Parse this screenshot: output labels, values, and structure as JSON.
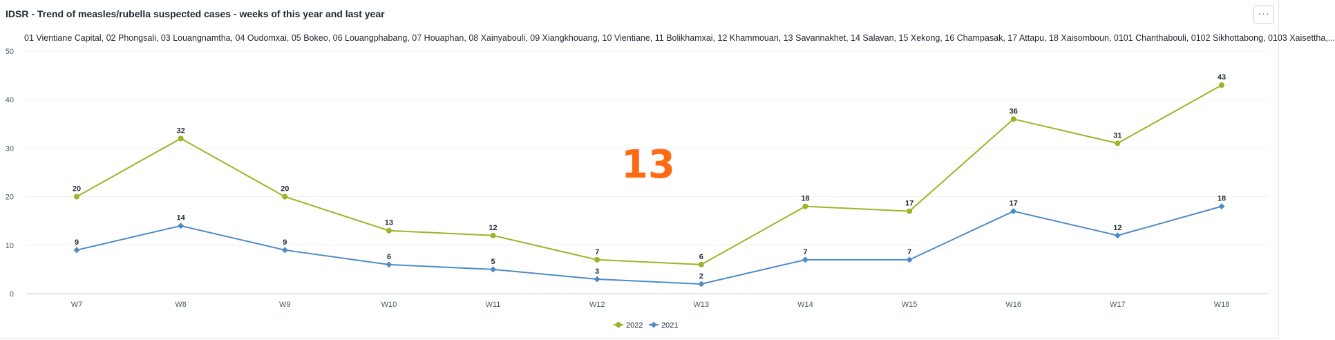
{
  "panel": {
    "title": "IDSR - Trend of measles/rubella suspected cases - weeks of this year and last year",
    "subtitle": "01 Vientiane Capital, 02 Phongsali, 03 Louangnamtha, 04 Oudomxai, 05 Bokeo, 06 Louangphabang, 07 Houaphan, 08 Xainyabouli, 09 Xiangkhouang, 10 Vientiane, 11 Bolikhamxai, 12 Khammouan, 13 Savannakhet, 14 Salavan, 15 Xekong, 16 Champasak, 17 Attapu, 18 Xaisomboun, 0101 Chanthabouli, 0102 Sikhottabong, 0103 Xaisettha,...",
    "menu_label": "···",
    "menu_icon": "more-horizontal-icon",
    "overlay_number": "13"
  },
  "colors": {
    "series_2022": "#9ab526",
    "series_2021": "#4c8bc8",
    "overlay": "#ff6a13",
    "grid": "#eceff2",
    "axis": "#c9ced4"
  },
  "chart_data": {
    "type": "line",
    "x": [
      "W7",
      "W8",
      "W9",
      "W10",
      "W11",
      "W12",
      "W13",
      "W14",
      "W15",
      "W16",
      "W17",
      "W18"
    ],
    "series": [
      {
        "name": "2022",
        "values": [
          20,
          32,
          20,
          13,
          12,
          7,
          6,
          18,
          17,
          36,
          31,
          43
        ]
      },
      {
        "name": "2021",
        "values": [
          9,
          14,
          9,
          6,
          5,
          3,
          2,
          7,
          7,
          17,
          12,
          18
        ]
      }
    ],
    "title": "IDSR - Trend of measles/rubella suspected cases - weeks of this year and last year",
    "xlabel": "",
    "ylabel": "",
    "ylim": [
      0,
      50
    ],
    "yticks": [
      0,
      10,
      20,
      30,
      40,
      50
    ],
    "grid": true,
    "legend": "bottom-center",
    "data_labels": true
  }
}
